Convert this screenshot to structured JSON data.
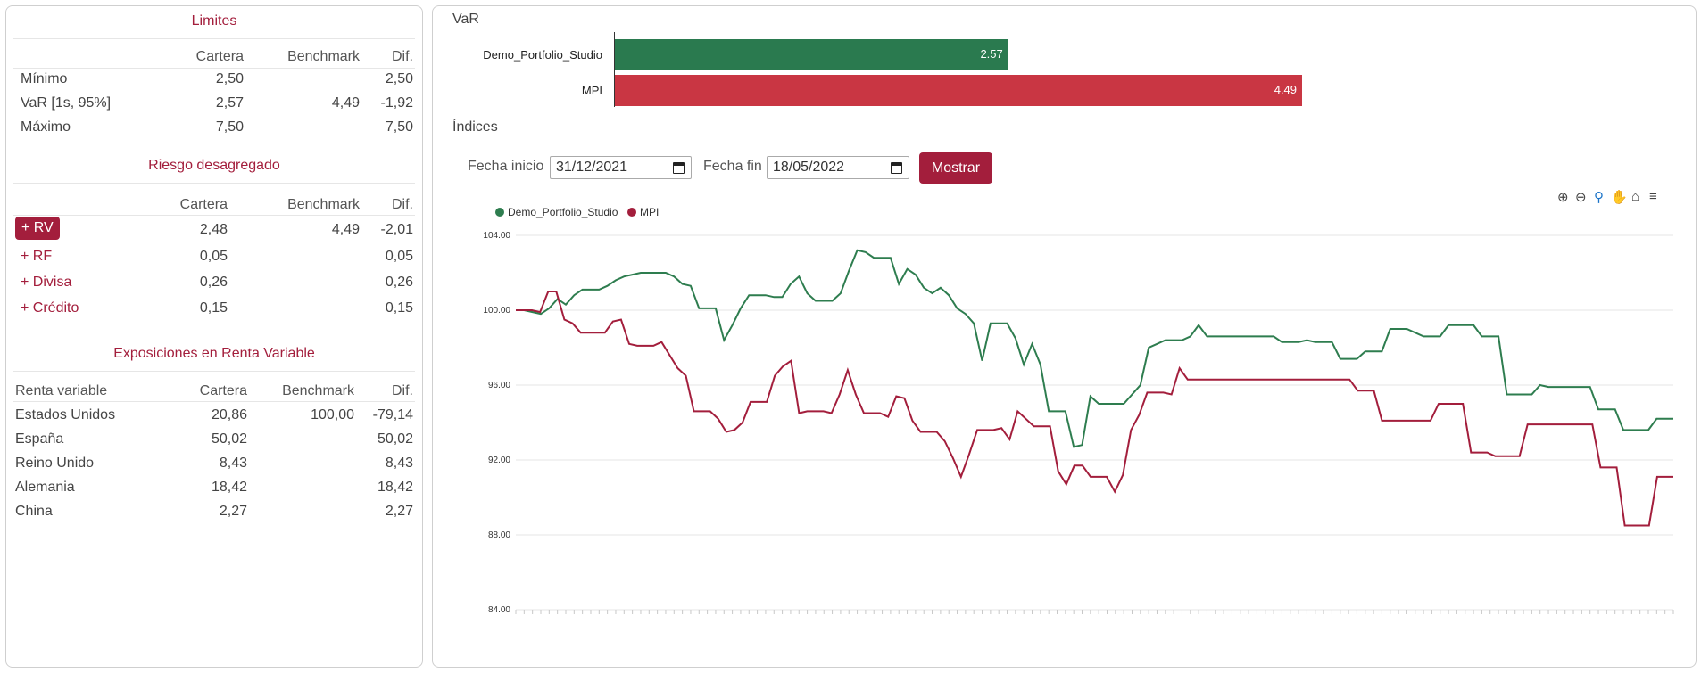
{
  "limits": {
    "title": "Limites",
    "headers": [
      "Cartera",
      "Benchmark",
      "Dif."
    ],
    "rows": [
      {
        "label": "Mínimo",
        "cartera": "2,50",
        "benchmark": "",
        "dif": "2,50"
      },
      {
        "label": "VaR [1s, 95%]",
        "cartera": "2,57",
        "benchmark": "4,49",
        "dif": "-1,92"
      },
      {
        "label": "Máximo",
        "cartera": "7,50",
        "benchmark": "",
        "dif": "7,50"
      }
    ]
  },
  "risk": {
    "title": "Riesgo desagregado",
    "headers": [
      "Cartera",
      "Benchmark",
      "Dif."
    ],
    "rows": [
      {
        "label": "+ RV",
        "cartera": "2,48",
        "benchmark": "4,49",
        "dif": "-2,01"
      },
      {
        "label": "+ RF",
        "cartera": "0,05",
        "benchmark": "",
        "dif": "0,05"
      },
      {
        "label": "+ Divisa",
        "cartera": "0,26",
        "benchmark": "",
        "dif": "0,26"
      },
      {
        "label": "+ Crédito",
        "cartera": "0,15",
        "benchmark": "",
        "dif": "0,15"
      }
    ]
  },
  "exposures": {
    "title": "Exposiciones en Renta Variable",
    "headers": [
      "Renta variable",
      "Cartera",
      "Benchmark",
      "Dif."
    ],
    "rows": [
      {
        "label": "Estados Unidos",
        "cartera": "20,86",
        "benchmark": "100,00",
        "dif": "-79,14"
      },
      {
        "label": "España",
        "cartera": "50,02",
        "benchmark": "",
        "dif": "50,02"
      },
      {
        "label": "Reino Unido",
        "cartera": "8,43",
        "benchmark": "",
        "dif": "8,43"
      },
      {
        "label": "Alemania",
        "cartera": "18,42",
        "benchmark": "",
        "dif": "18,42"
      },
      {
        "label": "China",
        "cartera": "2,27",
        "benchmark": "",
        "dif": "2,27"
      }
    ]
  },
  "var_section": {
    "title": "VaR",
    "bars": [
      {
        "label": "Demo_Portfolio_Studio",
        "value": 2.57,
        "value_label": "2.57",
        "color": "#2a7a4f"
      },
      {
        "label": "MPI",
        "value": 4.49,
        "value_label": "4.49",
        "color": "#c93643"
      }
    ]
  },
  "indices": {
    "title": "Índices",
    "start_label": "Fecha inicio",
    "start_value": "31/12/2021",
    "end_label": "Fecha fin",
    "end_value": "18/05/2022",
    "button_label": "Mostrar"
  },
  "toolbar_icons": [
    "zoom-in-icon",
    "zoom-out-icon",
    "zoom-selection-icon",
    "pan-icon",
    "home-icon",
    "menu-icon"
  ],
  "chart_data": {
    "type": "line",
    "ylim": [
      84,
      104
    ],
    "yticks": [
      "104.00",
      "100.00",
      "96.00",
      "92.00",
      "88.00",
      "84.00"
    ],
    "legend_position": "top-left",
    "grid": true,
    "series": [
      {
        "name": "Demo_Portfolio_Studio",
        "color": "#2e7d4f",
        "values": [
          100.0,
          100.0,
          99.9,
          99.8,
          100.1,
          100.6,
          100.3,
          100.8,
          101.1,
          101.1,
          101.1,
          101.3,
          101.6,
          101.8,
          101.9,
          102.0,
          102.0,
          102.0,
          102.0,
          101.8,
          101.4,
          101.3,
          100.1,
          100.1,
          100.1,
          98.4,
          99.2,
          100.1,
          100.8,
          100.8,
          100.8,
          100.7,
          100.7,
          101.4,
          101.8,
          100.9,
          100.5,
          100.5,
          100.5,
          100.9,
          102.1,
          103.2,
          103.1,
          102.8,
          102.8,
          102.8,
          101.4,
          102.2,
          101.9,
          101.2,
          100.9,
          101.2,
          100.8,
          100.1,
          99.8,
          99.3,
          97.3,
          99.3,
          99.3,
          99.3,
          98.5,
          97.1,
          98.2,
          97.1,
          94.6,
          94.6,
          94.6,
          92.7,
          92.8,
          95.4,
          95.0,
          95.0,
          95.0,
          95.0,
          95.5,
          96.0,
          98.0,
          98.2,
          98.4,
          98.4,
          98.4,
          98.6,
          99.2,
          98.6,
          98.6,
          98.6,
          98.6,
          98.6,
          98.6,
          98.6,
          98.6,
          98.6,
          98.3,
          98.3,
          98.3,
          98.4,
          98.3,
          98.3,
          98.3,
          97.4,
          97.4,
          97.4,
          97.8,
          97.8,
          97.8,
          99.0,
          99.0,
          99.0,
          98.8,
          98.6,
          98.6,
          98.6,
          99.2,
          99.2,
          99.2,
          99.2,
          98.6,
          98.6,
          98.6,
          95.5,
          95.5,
          95.5,
          95.5,
          96.0,
          95.9,
          95.9,
          95.9,
          95.9,
          95.9,
          95.9,
          94.7,
          94.7,
          94.7,
          93.6,
          93.6,
          93.6,
          93.6,
          94.2,
          94.2,
          94.2
        ]
      },
      {
        "name": "MPI",
        "color": "#a31e3c",
        "values": [
          100.0,
          100.0,
          100.0,
          99.9,
          101.0,
          101.0,
          99.5,
          99.3,
          98.8,
          98.8,
          98.8,
          98.8,
          99.4,
          99.5,
          98.2,
          98.1,
          98.1,
          98.1,
          98.3,
          97.6,
          96.9,
          96.5,
          94.6,
          94.6,
          94.6,
          94.2,
          93.5,
          93.6,
          94.0,
          95.1,
          95.1,
          95.1,
          96.5,
          97.0,
          97.3,
          94.5,
          94.6,
          94.6,
          94.6,
          94.5,
          95.5,
          96.8,
          95.5,
          94.5,
          94.5,
          94.5,
          94.3,
          95.4,
          95.3,
          94.1,
          93.5,
          93.5,
          93.5,
          93.0,
          92.1,
          91.1,
          92.3,
          93.6,
          93.6,
          93.6,
          93.7,
          93.1,
          94.6,
          94.2,
          93.8,
          93.8,
          93.8,
          91.4,
          90.7,
          91.7,
          91.7,
          91.1,
          91.1,
          91.1,
          90.3,
          91.2,
          93.6,
          94.4,
          95.6,
          95.6,
          95.6,
          95.5,
          96.9,
          96.3,
          96.3,
          96.3,
          96.3,
          96.3,
          96.3,
          96.3,
          96.3,
          96.3,
          96.3,
          96.3,
          96.3,
          96.3,
          96.3,
          96.3,
          96.3,
          96.3,
          96.3,
          96.3,
          96.3,
          96.3,
          95.7,
          95.7,
          95.7,
          94.1,
          94.1,
          94.1,
          94.1,
          94.1,
          94.1,
          94.1,
          95.0,
          95.0,
          95.0,
          95.0,
          92.4,
          92.4,
          92.4,
          92.2,
          92.2,
          92.2,
          92.2,
          93.9,
          93.9,
          93.9,
          93.9,
          93.9,
          93.9,
          93.9,
          93.9,
          93.9,
          91.6,
          91.6,
          91.6,
          88.5,
          88.5,
          88.5,
          88.5,
          91.1,
          91.1,
          91.1
        ]
      }
    ]
  }
}
